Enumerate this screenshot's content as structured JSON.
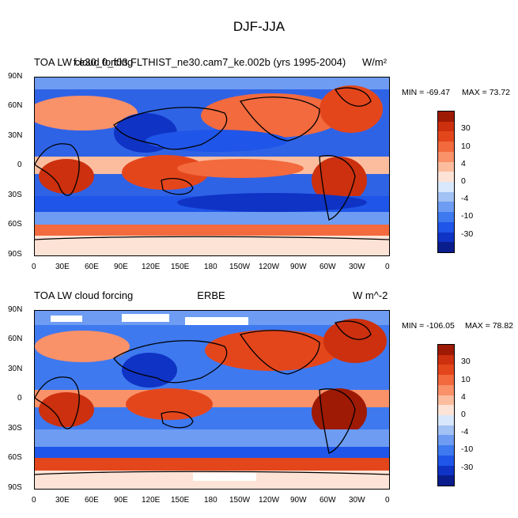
{
  "figure": {
    "title": "DJF-JJA"
  },
  "panels": [
    {
      "left_title": "TOA LW cloud forcing",
      "center_title": "f.e30_0_f03.FLTHIST_ne30.cam7_ke.002b (yrs 1995-2004)",
      "right_title": "W/m²",
      "min_label": "MIN = -69.47",
      "max_label": "MAX =  73.72",
      "cb_levels": [
        "30",
        "10",
        "4",
        "0",
        "-4",
        "-10",
        "-30"
      ]
    },
    {
      "left_title": "TOA LW cloud forcing",
      "center_title": "ERBE",
      "right_title": "W m^-2",
      "min_label": "MIN = -106.05",
      "max_label": "MAX =  78.82",
      "cb_levels": [
        "30",
        "10",
        "4",
        "0",
        "-4",
        "-10",
        "-30"
      ]
    }
  ],
  "lat_ticks": [
    "90N",
    "60N",
    "30N",
    "0",
    "30S",
    "60S",
    "90S"
  ],
  "lon_ticks": [
    "0",
    "30E",
    "60E",
    "90E",
    "120E",
    "150E",
    "180",
    "150W",
    "120W",
    "90W",
    "60W",
    "30W",
    "0"
  ],
  "colorbar_colors": [
    "#0a1d8c",
    "#0f33c4",
    "#1f55e8",
    "#3e79f0",
    "#6d9cf2",
    "#a2c1f4",
    "#d8e7fb",
    "#fde3d6",
    "#fcbd9e",
    "#f99169",
    "#f26a3e",
    "#e4461c",
    "#cc300e",
    "#9e1a05"
  ]
}
